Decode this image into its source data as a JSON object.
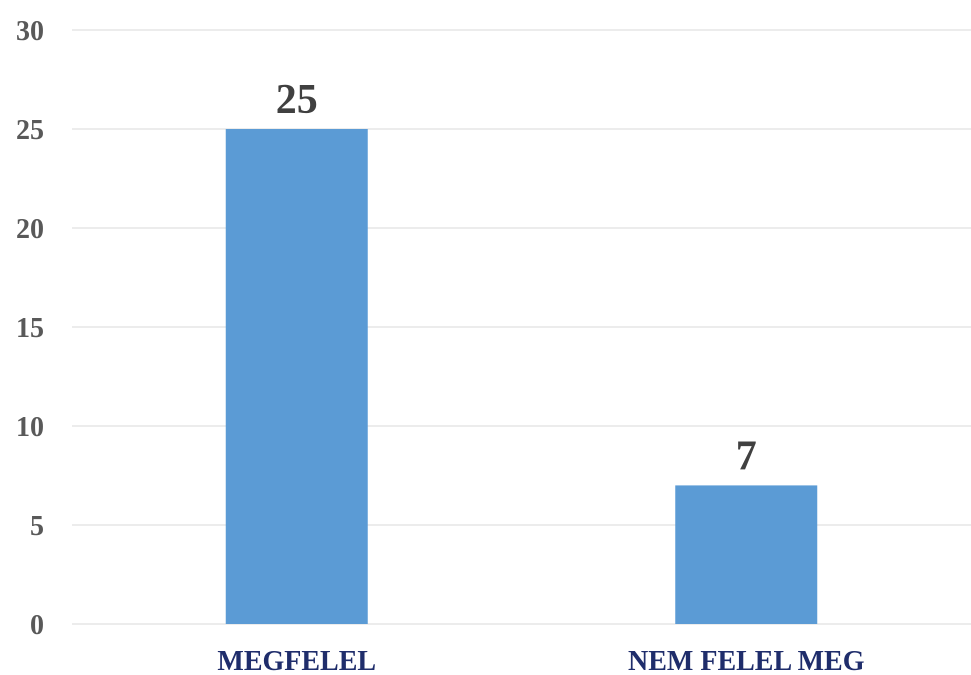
{
  "chart_data": {
    "type": "bar",
    "categories": [
      "MEGFELEL",
      "NEM FELEL MEG"
    ],
    "values": [
      25,
      7
    ],
    "data_labels": [
      "25",
      "7"
    ],
    "y_ticks": [
      "0",
      "5",
      "10",
      "15",
      "20",
      "25",
      "30"
    ],
    "ylim": [
      0,
      30
    ],
    "grid": true,
    "legend": "none",
    "title": "",
    "xlabel": "",
    "ylabel": "",
    "colors": {
      "bar": "#5b9bd5",
      "y_tick_text": "#595959",
      "x_tick_text": "#1f2d6b",
      "data_label_text": "#404040",
      "grid": "#d9d9d9"
    }
  }
}
